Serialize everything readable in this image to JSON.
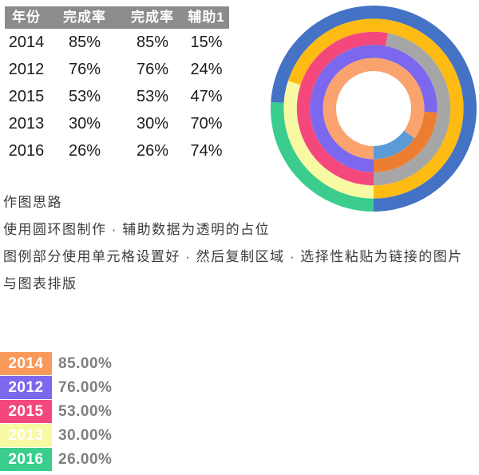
{
  "table": {
    "header_bg": "#8C8C8C",
    "headers": [
      "年份",
      "完成率",
      "完成率",
      "辅助1"
    ],
    "rows": [
      [
        "2014",
        "85%",
        "85%",
        "15%"
      ],
      [
        "2012",
        "76%",
        "76%",
        "24%"
      ],
      [
        "2015",
        "53%",
        "53%",
        "47%"
      ],
      [
        "2013",
        "30%",
        "30%",
        "70%"
      ],
      [
        "2016",
        "26%",
        "26%",
        "74%"
      ]
    ]
  },
  "notes": {
    "title": "作图思路",
    "lines": [
      "使用圆环图制作 · 辅助数据为透明的占位",
      "图例部分使用单元格设置好 · 然后复制区域 · 选择性粘贴为链接的图片",
      "与图表排版"
    ]
  },
  "legend": {
    "value_color": "#7F7F7F",
    "items": [
      {
        "year": "2014",
        "value": "85.00%",
        "color": "#F8995B"
      },
      {
        "year": "2012",
        "value": "76.00%",
        "color": "#7B68EE"
      },
      {
        "year": "2015",
        "value": "53.00%",
        "color": "#F4487D"
      },
      {
        "year": "2013",
        "value": "30.00%",
        "color": "#F7F9A3"
      },
      {
        "year": "2016",
        "value": "26.00%",
        "color": "#3ACD8E"
      }
    ]
  },
  "chart_data": {
    "type": "donut",
    "title": "",
    "start_angle_deg": 180,
    "direction": "clockwise",
    "outer_radius": 129,
    "hole_radius": 47,
    "rings_outer_to_inner": [
      {
        "year": "2016",
        "completion_pct": 26,
        "aux_pct": 74,
        "completion_color": "#3ACD8E",
        "aux_color": "#4472C4"
      },
      {
        "year": "2013",
        "completion_pct": 30,
        "aux_pct": 70,
        "completion_color": "#F7F9A3",
        "aux_color": "#FEBB13"
      },
      {
        "year": "2015",
        "completion_pct": 53,
        "aux_pct": 47,
        "completion_color": "#F4487D",
        "aux_color": "#A6A6A6"
      },
      {
        "year": "2012",
        "completion_pct": 76,
        "aux_pct": 24,
        "completion_color": "#7B68EE",
        "aux_color": "#ED7D31"
      },
      {
        "year": "2014",
        "completion_pct": 85,
        "aux_pct": 15,
        "completion_color": "#FAA36E",
        "aux_color": "#5B9BD5"
      }
    ]
  }
}
